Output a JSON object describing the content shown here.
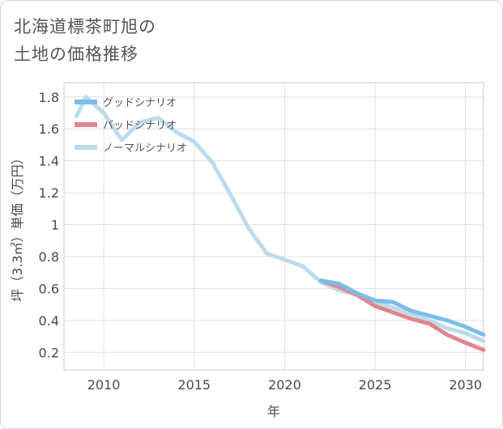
{
  "title": {
    "line1": "北海道標茶町旭の",
    "line2": "土地の価格推移"
  },
  "chart_data": {
    "type": "line",
    "title": "北海道標茶町旭の土地の価格推移",
    "xlabel": "年",
    "ylabel": "坪（3.3㎡）単価（万円）",
    "xlim": [
      2007.8,
      2031
    ],
    "ylim": [
      0.09,
      1.89
    ],
    "x_ticks": [
      2010,
      2015,
      2020,
      2025,
      2030
    ],
    "x_tick_labels": [
      "2010",
      "2015",
      "2020",
      "2025",
      "2030"
    ],
    "y_ticks": [
      0.2,
      0.4,
      0.6,
      0.8,
      1.0,
      1.2,
      1.4,
      1.6,
      1.8
    ],
    "y_tick_labels": [
      "0.2",
      "0.4",
      "0.6",
      "0.8",
      "1",
      "1.2",
      "1.4",
      "1.6",
      "1.8"
    ],
    "grid": true,
    "legend_position": "top-left",
    "series": [
      {
        "name": "グッドシナリオ",
        "color": "#7bbde8",
        "x": [
          2022,
          2023,
          2024,
          2025,
          2026,
          2027,
          2028,
          2029,
          2030,
          2031
        ],
        "y": [
          0.65,
          0.63,
          0.57,
          0.525,
          0.515,
          0.46,
          0.43,
          0.4,
          0.36,
          0.31
        ]
      },
      {
        "name": "バッドシナリオ",
        "color": "#e0868c",
        "x": [
          2022,
          2023,
          2024,
          2025,
          2026,
          2027,
          2028,
          2029,
          2030,
          2031
        ],
        "y": [
          0.65,
          0.61,
          0.56,
          0.49,
          0.45,
          0.41,
          0.38,
          0.31,
          0.26,
          0.215
        ]
      },
      {
        "name": "ノーマルシナリオ",
        "color": "#bcdcec",
        "x": [
          2008.5,
          2009,
          2010,
          2011,
          2012,
          2013,
          2014,
          2015,
          2016,
          2017,
          2018,
          2019,
          2020,
          2021,
          2022,
          2023,
          2024,
          2025,
          2026,
          2027,
          2028,
          2029,
          2030,
          2031
        ],
        "y": [
          1.68,
          1.8,
          1.7,
          1.53,
          1.64,
          1.67,
          1.58,
          1.52,
          1.39,
          1.19,
          0.98,
          0.82,
          0.78,
          0.74,
          0.64,
          0.59,
          0.56,
          0.51,
          0.48,
          0.44,
          0.4,
          0.35,
          0.32,
          0.27
        ]
      }
    ]
  }
}
